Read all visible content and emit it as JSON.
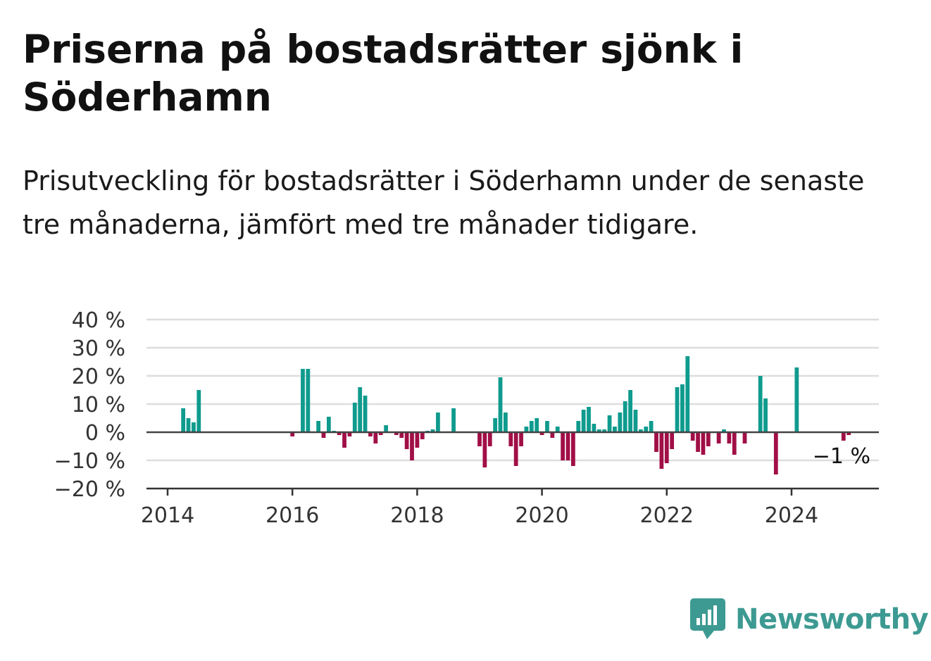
{
  "title": "Priserna på bostadsrätter sjönk i Söderhamn",
  "subtitle": "Prisutveckling för bostadsrätter i Söderhamn under de senaste tre månaderna, jämfört med tre månader tidigare.",
  "brand": {
    "name": "Newsworthy",
    "icon": "bar-chart-speech-bubble-icon",
    "color": "#3d9a92"
  },
  "colors": {
    "positive": "#0f9b8e",
    "negative": "#a10f47",
    "grid": "#dddddd",
    "axis": "#333333"
  },
  "chart_data": {
    "type": "bar",
    "title": "Priserna på bostadsrätter sjönk i Söderhamn",
    "xlabel": "",
    "ylabel": "",
    "ylim": [
      -20,
      40
    ],
    "y_ticks": [
      {
        "value": 40,
        "label": "40 %"
      },
      {
        "value": 30,
        "label": "30 %"
      },
      {
        "value": 20,
        "label": "20 %"
      },
      {
        "value": 10,
        "label": "10 %"
      },
      {
        "value": 0,
        "label": "0 %"
      },
      {
        "value": -10,
        "label": "−10 %"
      },
      {
        "value": -20,
        "label": "−20 %"
      }
    ],
    "x_ticks": [
      {
        "value": 2014,
        "label": "2014"
      },
      {
        "value": 2016,
        "label": "2016"
      },
      {
        "value": 2018,
        "label": "2018"
      },
      {
        "value": 2020,
        "label": "2020"
      },
      {
        "value": 2022,
        "label": "2022"
      },
      {
        "value": 2024,
        "label": "2024"
      }
    ],
    "grid": true,
    "last_value_label": "−1 %",
    "bars": [
      {
        "x": "2014-04",
        "y": 8.5
      },
      {
        "x": "2014-05",
        "y": 5.0
      },
      {
        "x": "2014-06",
        "y": 3.5
      },
      {
        "x": "2014-07",
        "y": 15.0
      },
      {
        "x": "2016-01",
        "y": -1.5
      },
      {
        "x": "2016-03",
        "y": 22.5
      },
      {
        "x": "2016-04",
        "y": 22.5
      },
      {
        "x": "2016-06",
        "y": 4.0
      },
      {
        "x": "2016-07",
        "y": -2.0
      },
      {
        "x": "2016-08",
        "y": 5.5
      },
      {
        "x": "2016-09",
        "y": 0.5
      },
      {
        "x": "2016-10",
        "y": -1.0
      },
      {
        "x": "2016-11",
        "y": -5.5
      },
      {
        "x": "2016-12",
        "y": -1.5
      },
      {
        "x": "2017-01",
        "y": 10.5
      },
      {
        "x": "2017-02",
        "y": 16.0
      },
      {
        "x": "2017-03",
        "y": 13.0
      },
      {
        "x": "2017-04",
        "y": -1.5
      },
      {
        "x": "2017-05",
        "y": -4.0
      },
      {
        "x": "2017-06",
        "y": -1.0
      },
      {
        "x": "2017-07",
        "y": 2.5
      },
      {
        "x": "2017-09",
        "y": -1.0
      },
      {
        "x": "2017-10",
        "y": -2.0
      },
      {
        "x": "2017-11",
        "y": -6.0
      },
      {
        "x": "2017-12",
        "y": -10.0
      },
      {
        "x": "2018-01",
        "y": -5.5
      },
      {
        "x": "2018-02",
        "y": -2.5
      },
      {
        "x": "2018-03",
        "y": 0.5
      },
      {
        "x": "2018-04",
        "y": 1.0
      },
      {
        "x": "2018-05",
        "y": 7.0
      },
      {
        "x": "2018-08",
        "y": 8.5
      },
      {
        "x": "2019-01",
        "y": -5.0
      },
      {
        "x": "2019-02",
        "y": -12.5
      },
      {
        "x": "2019-03",
        "y": -5.0
      },
      {
        "x": "2019-04",
        "y": 5.0
      },
      {
        "x": "2019-05",
        "y": 19.5
      },
      {
        "x": "2019-06",
        "y": 7.0
      },
      {
        "x": "2019-07",
        "y": -5.0
      },
      {
        "x": "2019-08",
        "y": -12.0
      },
      {
        "x": "2019-09",
        "y": -5.0
      },
      {
        "x": "2019-10",
        "y": 2.0
      },
      {
        "x": "2019-11",
        "y": 4.0
      },
      {
        "x": "2019-12",
        "y": 5.0
      },
      {
        "x": "2020-01",
        "y": -1.0
      },
      {
        "x": "2020-02",
        "y": 4.0
      },
      {
        "x": "2020-03",
        "y": -2.0
      },
      {
        "x": "2020-04",
        "y": 2.0
      },
      {
        "x": "2020-05",
        "y": -10.0
      },
      {
        "x": "2020-06",
        "y": -10.0
      },
      {
        "x": "2020-07",
        "y": -12.0
      },
      {
        "x": "2020-08",
        "y": 4.0
      },
      {
        "x": "2020-09",
        "y": 8.0
      },
      {
        "x": "2020-10",
        "y": 9.0
      },
      {
        "x": "2020-11",
        "y": 3.0
      },
      {
        "x": "2020-12",
        "y": 1.0
      },
      {
        "x": "2021-01",
        "y": 1.0
      },
      {
        "x": "2021-02",
        "y": 6.0
      },
      {
        "x": "2021-03",
        "y": 2.0
      },
      {
        "x": "2021-04",
        "y": 7.0
      },
      {
        "x": "2021-05",
        "y": 11.0
      },
      {
        "x": "2021-06",
        "y": 15.0
      },
      {
        "x": "2021-07",
        "y": 8.0
      },
      {
        "x": "2021-08",
        "y": 1.0
      },
      {
        "x": "2021-09",
        "y": 2.0
      },
      {
        "x": "2021-10",
        "y": 4.0
      },
      {
        "x": "2021-11",
        "y": -7.0
      },
      {
        "x": "2021-12",
        "y": -13.0
      },
      {
        "x": "2022-01",
        "y": -11.0
      },
      {
        "x": "2022-02",
        "y": -6.0
      },
      {
        "x": "2022-03",
        "y": 16.0
      },
      {
        "x": "2022-04",
        "y": 17.0
      },
      {
        "x": "2022-05",
        "y": 27.0
      },
      {
        "x": "2022-06",
        "y": -3.0
      },
      {
        "x": "2022-07",
        "y": -7.0
      },
      {
        "x": "2022-08",
        "y": -8.0
      },
      {
        "x": "2022-09",
        "y": -5.0
      },
      {
        "x": "2022-11",
        "y": -4.0
      },
      {
        "x": "2022-12",
        "y": 1.0
      },
      {
        "x": "2023-01",
        "y": -4.0
      },
      {
        "x": "2023-02",
        "y": -8.0
      },
      {
        "x": "2023-04",
        "y": -4.0
      },
      {
        "x": "2023-07",
        "y": 20.0
      },
      {
        "x": "2023-08",
        "y": 12.0
      },
      {
        "x": "2023-10",
        "y": -15.0
      },
      {
        "x": "2024-02",
        "y": 23.0
      },
      {
        "x": "2024-11",
        "y": -3.0
      },
      {
        "x": "2024-12",
        "y": -1.0
      }
    ]
  }
}
